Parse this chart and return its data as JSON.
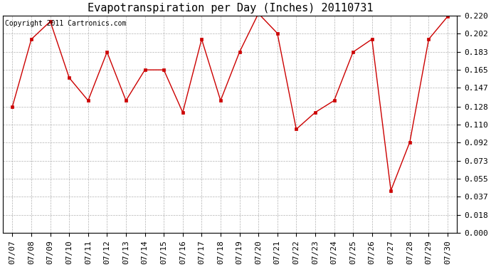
{
  "title": "Evapotranspiration per Day (Inches) 20110731",
  "copyright": "Copyright 2011 Cartronics.com",
  "dates": [
    "07/07",
    "07/08",
    "07/09",
    "07/10",
    "07/11",
    "07/12",
    "07/13",
    "07/14",
    "07/15",
    "07/16",
    "07/17",
    "07/18",
    "07/19",
    "07/20",
    "07/21",
    "07/22",
    "07/23",
    "07/24",
    "07/25",
    "07/26",
    "07/27",
    "07/28",
    "07/29",
    "07/30"
  ],
  "values": [
    0.128,
    0.196,
    0.214,
    0.157,
    0.134,
    0.183,
    0.134,
    0.165,
    0.165,
    0.122,
    0.196,
    0.134,
    0.183,
    0.222,
    0.202,
    0.105,
    0.122,
    0.134,
    0.183,
    0.196,
    0.043,
    0.092,
    0.196,
    0.219
  ],
  "yticks": [
    0.0,
    0.018,
    0.037,
    0.055,
    0.073,
    0.092,
    0.11,
    0.128,
    0.147,
    0.165,
    0.183,
    0.202,
    0.22
  ],
  "line_color": "#cc0000",
  "marker": "s",
  "marker_size": 3,
  "background_color": "#ffffff",
  "grid_color": "#aaaaaa",
  "title_fontsize": 11,
  "tick_fontsize": 8,
  "copyright_fontsize": 7
}
